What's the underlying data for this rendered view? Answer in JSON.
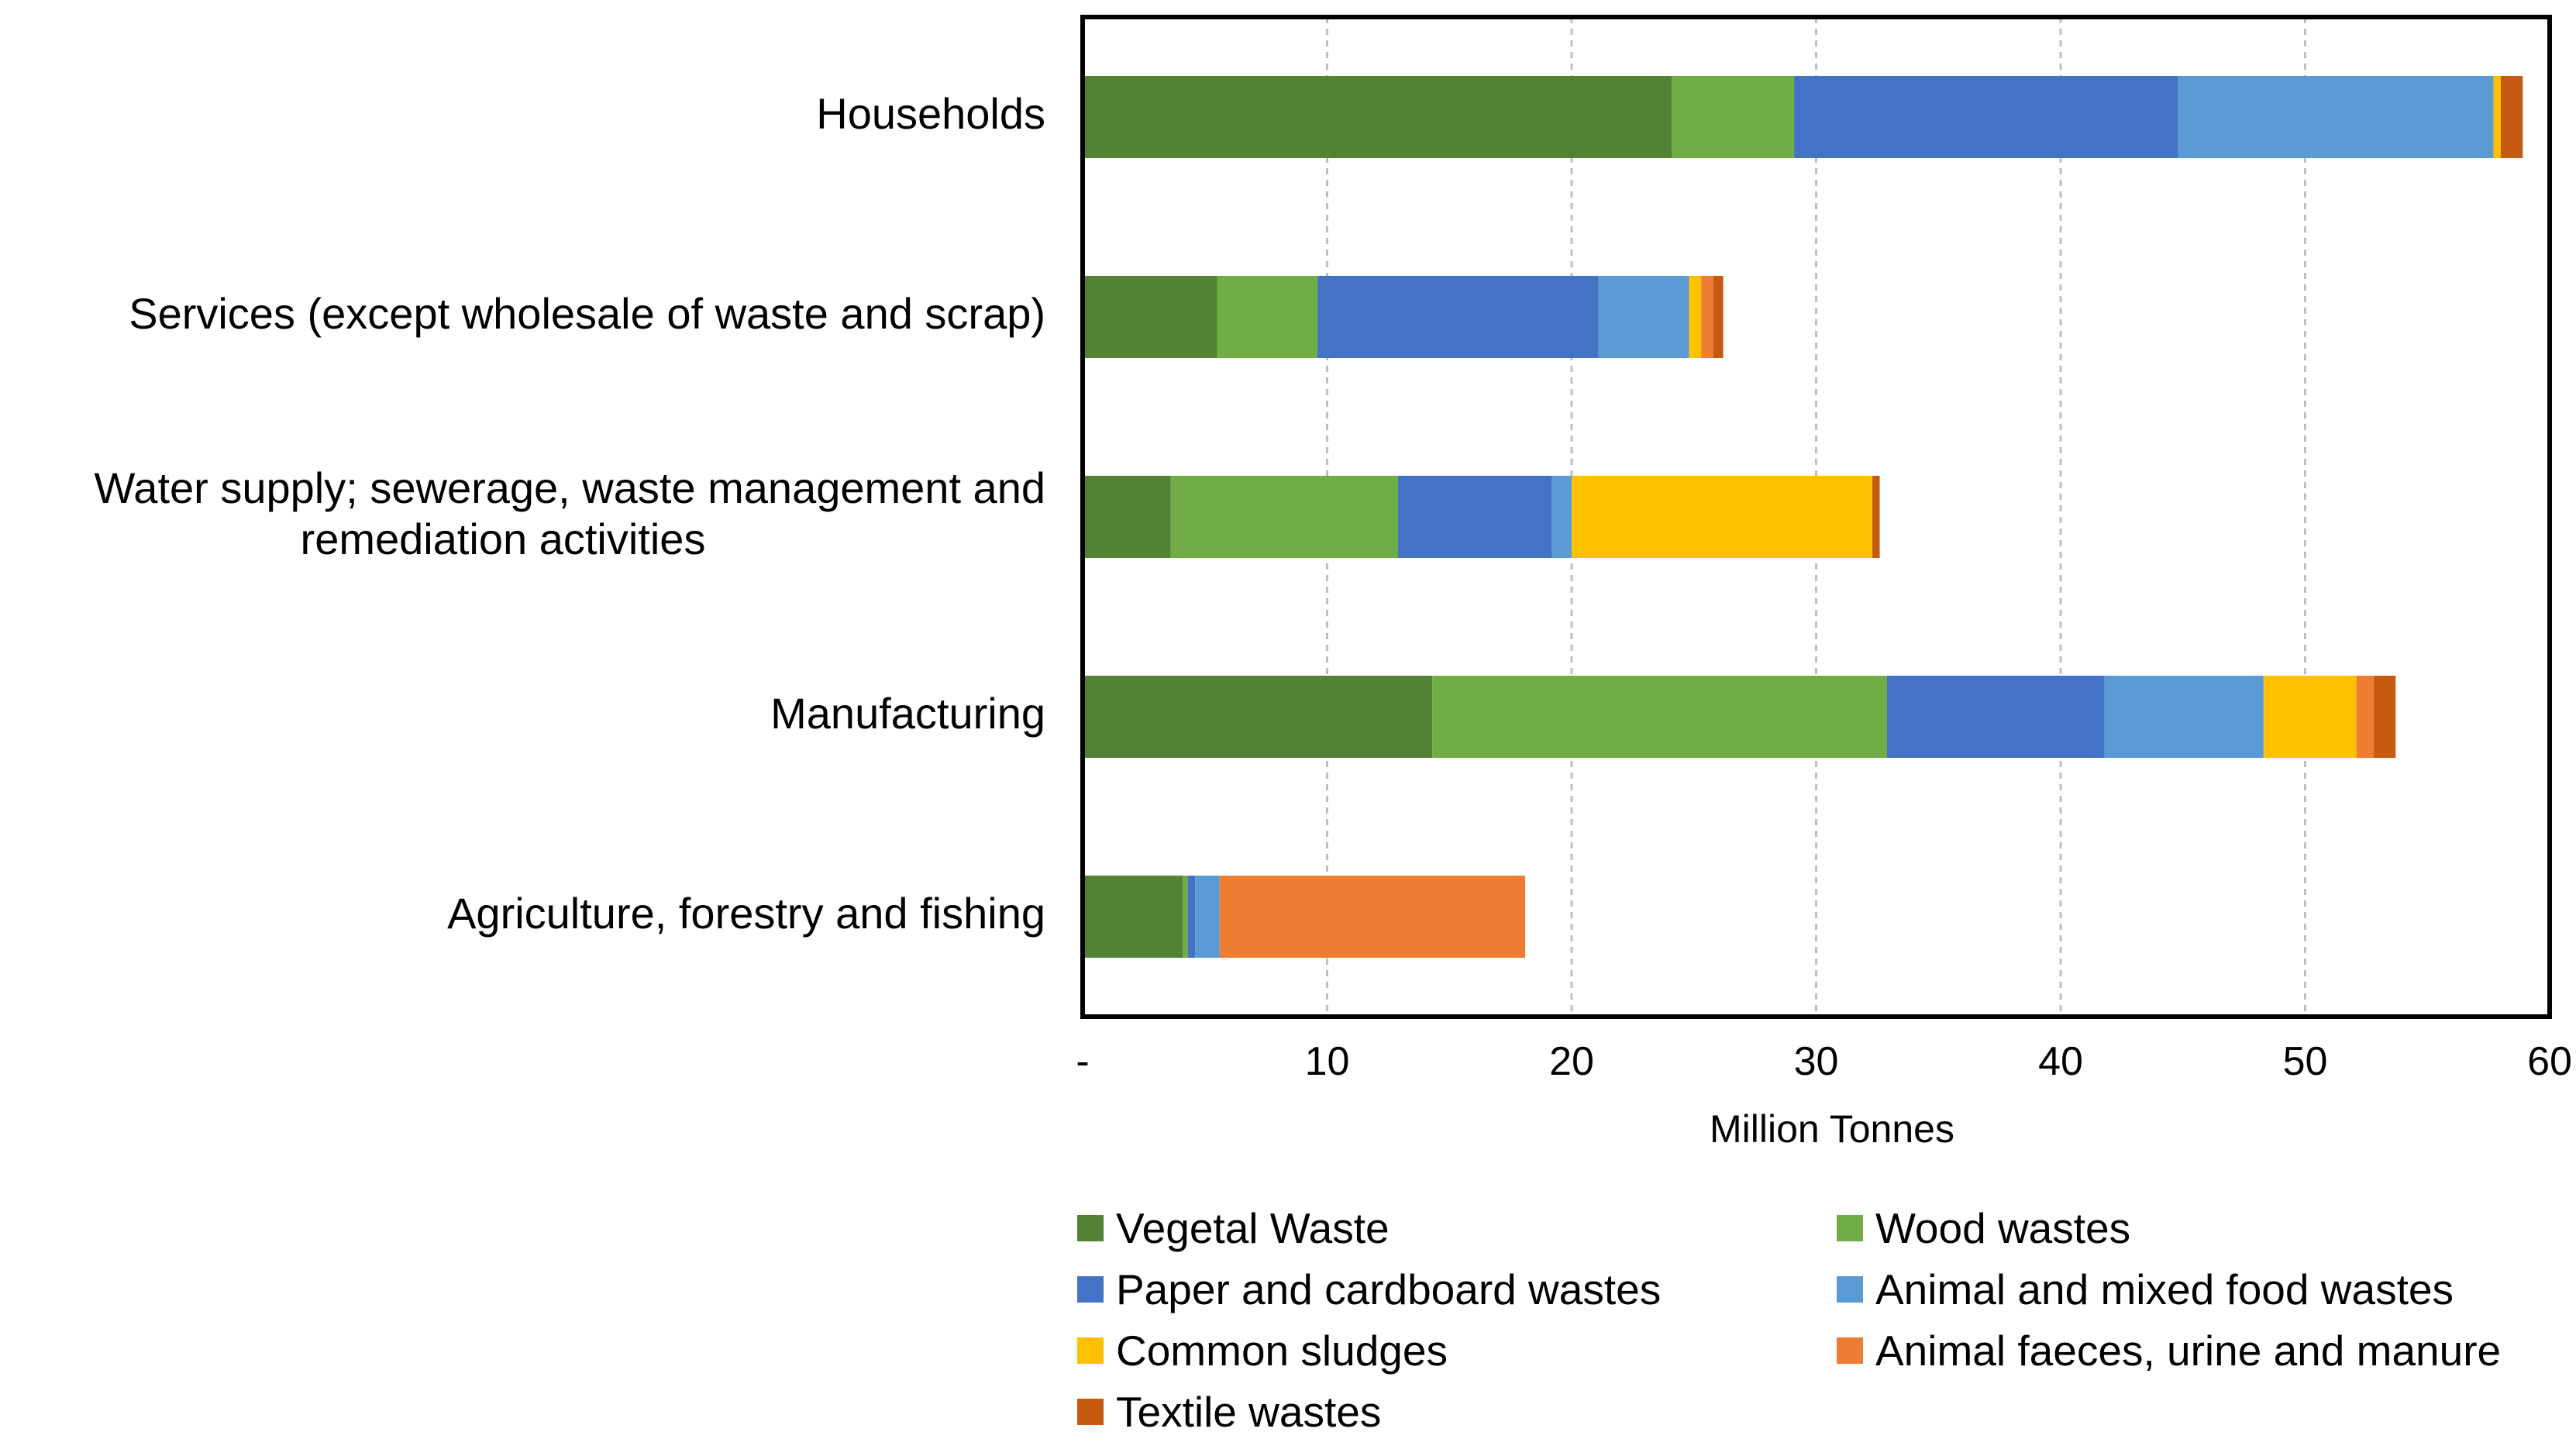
{
  "chart_data": {
    "type": "bar",
    "orientation": "horizontal",
    "stacked": true,
    "title": "",
    "xlabel": "Million Tonnes",
    "ylabel": "",
    "xlim": [
      0,
      60
    ],
    "xticks": [
      0,
      10,
      20,
      30,
      40,
      50,
      60
    ],
    "xtick_labels": [
      "-",
      "10",
      "20",
      "30",
      "40",
      "50",
      "60"
    ],
    "grid": "vertical dashed",
    "legend_position": "bottom",
    "categories": [
      "Households",
      "Services (except wholesale of waste and scrap)",
      "Water supply; sewerage, waste management and remediation activities",
      "Manufacturing",
      "Agriculture, forestry and fishing"
    ],
    "category_lines": [
      [
        "Households"
      ],
      [
        "Services (except wholesale of waste and scrap)"
      ],
      [
        "Water supply; sewerage, waste management and",
        "remediation activities"
      ],
      [
        "Manufacturing"
      ],
      [
        "Agriculture, forestry and fishing"
      ]
    ],
    "series": [
      {
        "name": "Vegetal Waste",
        "color": "#548235",
        "values": [
          24.1,
          5.5,
          3.6,
          14.3,
          4.1
        ]
      },
      {
        "name": "Wood wastes",
        "color": "#70AD47",
        "values": [
          5.0,
          4.1,
          9.3,
          18.6,
          0.2
        ]
      },
      {
        "name": "Paper and cardboard wastes",
        "color": "#4472C4",
        "values": [
          15.7,
          11.5,
          6.3,
          8.9,
          0.3
        ]
      },
      {
        "name": "Animal and mixed food wastes",
        "color": "#5B9BD5",
        "values": [
          12.9,
          3.7,
          0.8,
          6.5,
          1.0
        ]
      },
      {
        "name": "Common sludges",
        "color": "#FFC000",
        "values": [
          0.3,
          0.5,
          12.3,
          3.8,
          0.0
        ]
      },
      {
        "name": "Animal faeces, urine and manure",
        "color": "#ED7D31",
        "values": [
          0.0,
          0.5,
          0.0,
          0.7,
          12.5
        ]
      },
      {
        "name": "Textile wastes",
        "color": "#C55A11",
        "values": [
          0.9,
          0.4,
          0.3,
          0.9,
          0.0
        ]
      }
    ]
  }
}
